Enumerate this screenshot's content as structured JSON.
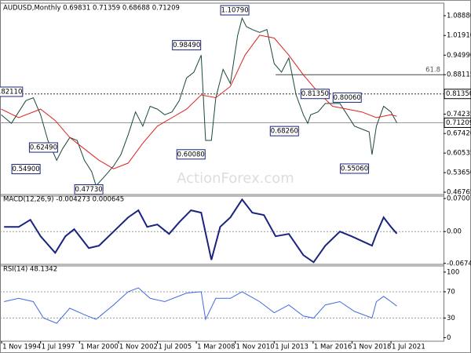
{
  "chart_data": [
    {
      "type": "line",
      "title": "AUDUSD,Monthly  0.69831 0.71359 0.68688 0.71209",
      "watermark": "ActionForex.com",
      "xlim": [
        1994.72,
        2025.1
      ],
      "ylim": [
        0.4594,
        1.1219
      ],
      "yticks": [
        {
          "value": 1.0888,
          "label": "1.08880"
        },
        {
          "value": 1.0191,
          "label": "1.01910"
        },
        {
          "value": 0.9499,
          "label": "0.94990"
        },
        0.88115,
        0.74235,
        {
          "value": 0.6742,
          "label": "0.67420"
        },
        0.60535,
        {
          "value": 0.5365,
          "label": "0.53650"
        },
        0.46765
      ],
      "markers": [
        {
          "value": 0.8135,
          "label": "0.81350"
        },
        {
          "value": 0.71209,
          "label": "0.71209"
        }
      ],
      "fib": {
        "ratio": 61.8,
        "price": 0.88115,
        "from": 2013.6
      },
      "series": [
        {
          "name": "AUDUSD",
          "color": "#1a4a3a",
          "x": [
            1994.8,
            1995.5,
            1996,
            1996.5,
            1997,
            1997.5,
            1998,
            1998.6,
            1999,
            1999.5,
            2000,
            2000.5,
            2001,
            2001.3,
            2002,
            2002.5,
            2003,
            2003.5,
            2004,
            2004.5,
            2005,
            2005.5,
            2006,
            2006.5,
            2007,
            2007.5,
            2008,
            2008.5,
            2008.8,
            2009.2,
            2009.5,
            2010,
            2010.5,
            2011,
            2011.3,
            2011.6,
            2012,
            2012.5,
            2013,
            2013.5,
            2014,
            2014.5,
            2015,
            2015.5,
            2015.8,
            2016,
            2016.5,
            2017,
            2017.5,
            2018,
            2018.5,
            2019,
            2019.5,
            2020,
            2020.2,
            2020.5,
            2021,
            2021.5,
            2021.9
          ],
          "values": [
            0.74,
            0.71,
            0.75,
            0.79,
            0.8,
            0.74,
            0.65,
            0.58,
            0.62,
            0.66,
            0.65,
            0.58,
            0.54,
            0.49,
            0.53,
            0.56,
            0.6,
            0.67,
            0.75,
            0.7,
            0.77,
            0.76,
            0.74,
            0.75,
            0.79,
            0.87,
            0.89,
            0.95,
            0.65,
            0.65,
            0.8,
            0.9,
            0.85,
            1.02,
            1.08,
            1.05,
            1.04,
            1.03,
            1.04,
            0.92,
            0.89,
            0.94,
            0.81,
            0.74,
            0.71,
            0.74,
            0.75,
            0.78,
            0.78,
            0.78,
            0.74,
            0.7,
            0.69,
            0.68,
            0.6,
            0.7,
            0.77,
            0.75,
            0.71209
          ]
        },
        {
          "name": "SMA",
          "color": "#e02020",
          "x": [
            1994.8,
            1996,
            1997.5,
            1998.5,
            1999.5,
            2000.5,
            2001.5,
            2002.5,
            2003.5,
            2004.5,
            2005.5,
            2006.5,
            2007.5,
            2008.5,
            2009.5,
            2010.5,
            2011.5,
            2012.5,
            2013.5,
            2014.5,
            2015.5,
            2016.5,
            2017.5,
            2018.5,
            2019.5,
            2020.5,
            2021.5,
            2021.9
          ],
          "values": [
            0.76,
            0.73,
            0.76,
            0.72,
            0.66,
            0.62,
            0.58,
            0.55,
            0.57,
            0.64,
            0.7,
            0.73,
            0.76,
            0.81,
            0.8,
            0.84,
            0.95,
            1.02,
            1.01,
            0.95,
            0.88,
            0.82,
            0.77,
            0.76,
            0.75,
            0.73,
            0.74,
            0.735
          ]
        }
      ],
      "annotations": [
        {
          "x": 1995.3,
          "value": 0.8211,
          "label": "0.82110"
        },
        {
          "x": 1997.7,
          "value": 0.6249,
          "label": "0.62490"
        },
        {
          "x": 1996.5,
          "value": 0.549,
          "label": "0.54900"
        },
        {
          "x": 2000.8,
          "value": 0.4773,
          "label": "0.47730"
        },
        {
          "x": 2007.5,
          "value": 0.9849,
          "label": "0.98490"
        },
        {
          "x": 2007.8,
          "value": 0.6008,
          "label": "0.60080"
        },
        {
          "x": 2010.8,
          "value": 1.1079,
          "label": "1.10790"
        },
        {
          "x": 2014.2,
          "value": 0.6826,
          "label": "0.68260"
        },
        {
          "x": 2016.3,
          "value": 0.8135,
          "label": "0.81350"
        },
        {
          "x": 2018.5,
          "value": 0.8006,
          "label": "0.80060"
        },
        {
          "x": 2019.0,
          "value": 0.5506,
          "label": "0.55060"
        }
      ]
    },
    {
      "type": "line",
      "title": "MACD(12,26,9) -0.004273 0.000645",
      "xlim": [
        1994.72,
        2025.1
      ],
      "ylim": [
        -0.0695,
        0.0718
      ],
      "yticks": [
        0.070071,
        {
          "value": 0,
          "label": "0.00"
        },
        -0.067423
      ],
      "series": [
        {
          "name": "MACD",
          "color": "#1a237e",
          "x": [
            1995,
            1996,
            1996.8,
            1997.5,
            1998.5,
            1999.2,
            1999.8,
            2000.8,
            2001.5,
            2002.5,
            2003.5,
            2004.2,
            2004.8,
            2005.5,
            2006.3,
            2007,
            2007.8,
            2008.5,
            2009.2,
            2009.8,
            2010.5,
            2011.3,
            2012,
            2012.8,
            2013.6,
            2014.5,
            2015.5,
            2016.2,
            2017,
            2018,
            2018.8,
            2019.5,
            2020.2,
            2020.5,
            2021,
            2021.5,
            2021.9
          ],
          "values": [
            0.01,
            0.01,
            0.025,
            -0.01,
            -0.045,
            -0.01,
            0.005,
            -0.035,
            -0.03,
            0,
            0.03,
            0.045,
            0.01,
            0.015,
            -0.005,
            0.02,
            0.045,
            0.04,
            -0.06,
            0.01,
            0.03,
            0.068,
            0.04,
            0.035,
            -0.01,
            -0.005,
            -0.05,
            -0.065,
            -0.03,
            0,
            -0.01,
            -0.02,
            -0.03,
            -0.005,
            0.03,
            0.01,
            -0.004273
          ]
        }
      ]
    },
    {
      "type": "line",
      "title": "RSI(14) 48.1342",
      "xlim": [
        1994.72,
        2025.1
      ],
      "ylim": [
        -3,
        107
      ],
      "yticks": [
        100,
        70,
        30,
        0
      ],
      "levels": [
        70,
        30
      ],
      "xticks": [
        {
          "value": 1994.833,
          "label": "1 Nov 1994"
        },
        {
          "value": 1997.5,
          "label": "1 Jul 1997"
        },
        {
          "value": 2000.167,
          "label": "1 Mar 2000"
        },
        {
          "value": 2002.833,
          "label": "1 Nov 2002"
        },
        {
          "value": 2005.5,
          "label": "1 Jul 2005"
        },
        {
          "value": 2008.167,
          "label": "1 Mar 2008"
        },
        {
          "value": 2010.833,
          "label": "1 Nov 2010"
        },
        {
          "value": 2013.5,
          "label": "1 Jul 2013"
        },
        {
          "value": 2016.167,
          "label": "1 Mar 2016"
        },
        {
          "value": 2018.833,
          "label": "1 Nov 2018"
        },
        {
          "value": 2021.5,
          "label": "1 Jul 2021"
        }
      ],
      "series": [
        {
          "name": "RSI",
          "color": "#4169e1",
          "x": [
            1995,
            1996,
            1997,
            1997.7,
            1998.6,
            1999.5,
            2000.5,
            2001.3,
            2002.5,
            2003.5,
            2004.2,
            2005,
            2006,
            2007.5,
            2008.5,
            2008.8,
            2009.5,
            2010.5,
            2011.3,
            2012.5,
            2013.5,
            2014.5,
            2015.5,
            2016.2,
            2017,
            2018,
            2019,
            2020.2,
            2020.5,
            2021,
            2021.5,
            2021.9
          ],
          "values": [
            55,
            60,
            55,
            30,
            22,
            45,
            35,
            28,
            50,
            70,
            76,
            60,
            55,
            68,
            70,
            28,
            60,
            60,
            70,
            55,
            38,
            50,
            33,
            30,
            50,
            55,
            40,
            30,
            55,
            63,
            55,
            48.1342
          ]
        }
      ]
    }
  ]
}
